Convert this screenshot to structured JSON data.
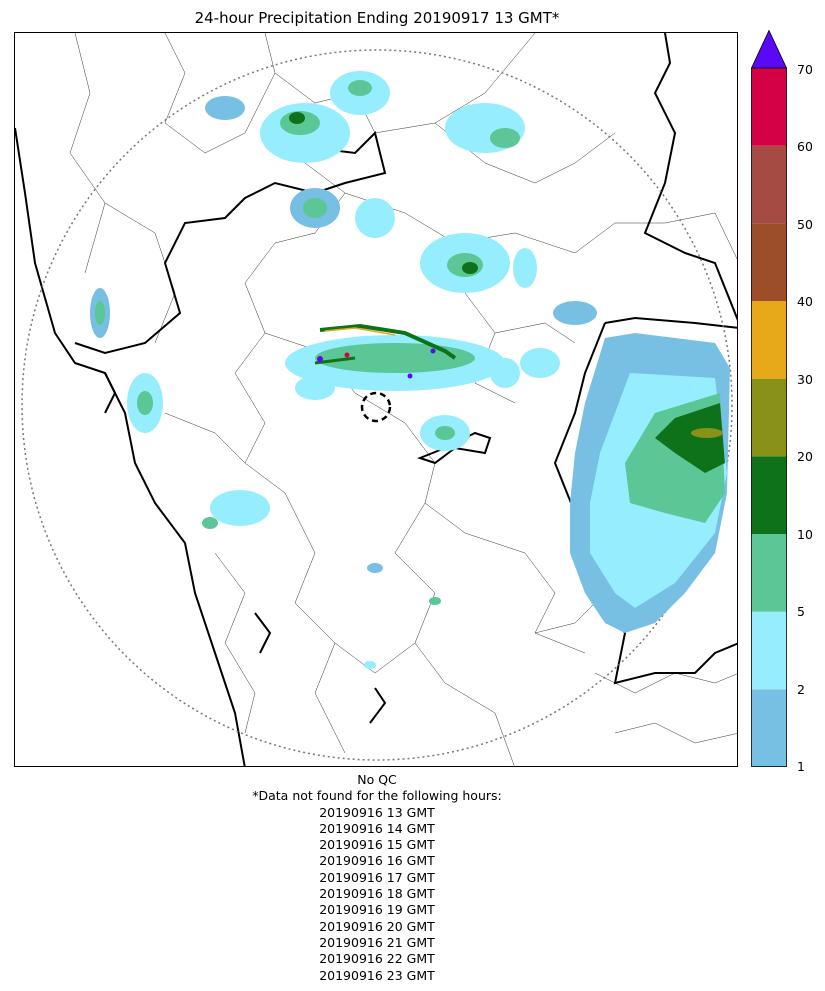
{
  "title": "24-hour Precipitation Ending 20190917 13 GMT*",
  "colorbar": {
    "levels": [
      "1",
      "2",
      "5",
      "10",
      "20",
      "30",
      "40",
      "50",
      "60",
      "70"
    ],
    "colors": [
      "#77bfe3",
      "#96edfd",
      "#5bc696",
      "#0e721b",
      "#8a9119",
      "#e7a81a",
      "#9b4e27",
      "#a54b43",
      "#d40146"
    ],
    "extend_color": "#5a09f8",
    "extend": "max"
  },
  "map": {
    "overlay": "24-hour precipitation (radar)",
    "features": [
      "coastline",
      "country-borders",
      "state-borders",
      "district-boundaries",
      "radar-range-circle",
      "radar-site-marker"
    ]
  },
  "footer": {
    "qc": "No QC",
    "note": "*Data not found for the following hours:",
    "hours": [
      "20190916 13 GMT",
      "20190916 14 GMT",
      "20190916 15 GMT",
      "20190916 16 GMT",
      "20190916 17 GMT",
      "20190916 18 GMT",
      "20190916 19 GMT",
      "20190916 20 GMT",
      "20190916 21 GMT",
      "20190916 22 GMT",
      "20190916 23 GMT"
    ]
  }
}
